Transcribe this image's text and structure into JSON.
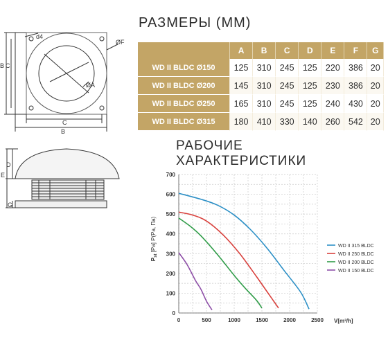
{
  "headings": {
    "dimensions": "РАЗМЕРЫ (ММ)",
    "performance_line1": "РАБОЧИЕ",
    "performance_line2": "ХАРАКТЕРИСТИКИ"
  },
  "drawing_labels": {
    "top_view": [
      "d4",
      "ØF",
      "ØA",
      "B",
      "C",
      "C",
      "B"
    ],
    "side_view": [
      "D",
      "E",
      "G"
    ]
  },
  "dimensions_table": {
    "columns": [
      "",
      "A",
      "B",
      "C",
      "D",
      "E",
      "F",
      "G"
    ],
    "rows": [
      {
        "model": "WD II BLDC Ø150",
        "values": [
          "125",
          "310",
          "245",
          "125",
          "220",
          "386",
          "20"
        ]
      },
      {
        "model": "WD II BLDC Ø200",
        "values": [
          "145",
          "310",
          "245",
          "125",
          "230",
          "386",
          "20"
        ]
      },
      {
        "model": "WD II BLDC Ø250",
        "values": [
          "165",
          "310",
          "245",
          "125",
          "240",
          "430",
          "20"
        ]
      },
      {
        "model": "WD II BLDC Ø315",
        "values": [
          "180",
          "410",
          "330",
          "140",
          "260",
          "542",
          "20"
        ]
      }
    ]
  },
  "colors": {
    "gold": "#c3a566",
    "series_315": "#2b8fc6",
    "series_250": "#d9413d",
    "series_200": "#2f9c48",
    "series_150": "#8e4fa8"
  },
  "chart_data": {
    "type": "line",
    "ylabel": "P",
    "ylabel_sub": "st",
    "ylabel_rest": " [Pa] P(Pa, Па)",
    "xlabel": "V[m³/h]",
    "xlim": [
      0,
      2500
    ],
    "ylim": [
      0,
      700
    ],
    "x_ticks": [
      0,
      500,
      1000,
      1500,
      2000,
      2500
    ],
    "y_ticks": [
      0,
      100,
      200,
      300,
      400,
      500,
      600,
      700
    ],
    "grid": true,
    "legend_position": "right",
    "series": [
      {
        "name": "WD II 315 BLDC",
        "color": "#2b8fc6",
        "x": [
          0,
          400,
          700,
          1000,
          1300,
          1600,
          1900,
          2200,
          2350
        ],
        "y": [
          605,
          575,
          545,
          495,
          420,
          325,
          215,
          105,
          20
        ]
      },
      {
        "name": "WD II 250 BLDC",
        "color": "#d9413d",
        "x": [
          0,
          250,
          500,
          800,
          1100,
          1400,
          1600,
          1800
        ],
        "y": [
          510,
          495,
          465,
          395,
          300,
          185,
          105,
          25
        ]
      },
      {
        "name": "WD II 200 BLDC",
        "color": "#2f9c48",
        "x": [
          0,
          200,
          400,
          700,
          1000,
          1200,
          1400,
          1500
        ],
        "y": [
          480,
          440,
          390,
          295,
          190,
          125,
          65,
          25
        ]
      },
      {
        "name": "WD II 150 BLDC",
        "color": "#8e4fa8",
        "x": [
          0,
          150,
          300,
          400,
          500,
          600
        ],
        "y": [
          305,
          245,
          165,
          120,
          60,
          15
        ]
      }
    ]
  }
}
